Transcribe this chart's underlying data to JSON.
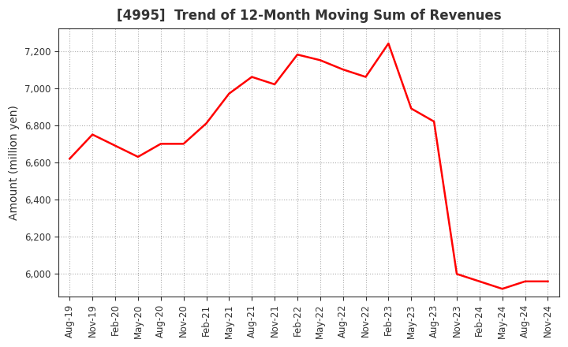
{
  "title": "[4995]  Trend of 12-Month Moving Sum of Revenues",
  "ylabel": "Amount (million yen)",
  "line_color": "#FF0000",
  "line_width": 1.8,
  "background_color": "#FFFFFF",
  "grid_color": "#999999",
  "x_labels": [
    "Aug-19",
    "Nov-19",
    "Feb-20",
    "May-20",
    "Aug-20",
    "Nov-20",
    "Feb-21",
    "May-21",
    "Aug-21",
    "Nov-21",
    "Feb-22",
    "May-22",
    "Aug-22",
    "Nov-22",
    "Feb-23",
    "May-23",
    "Aug-23",
    "Nov-23",
    "Feb-24",
    "May-24",
    "Aug-24",
    "Nov-24"
  ],
  "y_values": [
    6620,
    6750,
    6690,
    6630,
    6700,
    6700,
    6810,
    6970,
    7060,
    7020,
    7180,
    7150,
    7100,
    7060,
    7240,
    6890,
    6820,
    6000,
    5960,
    5920,
    5960,
    5960
  ],
  "ylim": [
    5880,
    7320
  ],
  "yticks": [
    6000,
    6200,
    6400,
    6600,
    6800,
    7000,
    7200
  ],
  "title_fontsize": 12,
  "title_color": "#333333",
  "axis_fontsize": 10,
  "tick_fontsize": 8.5
}
